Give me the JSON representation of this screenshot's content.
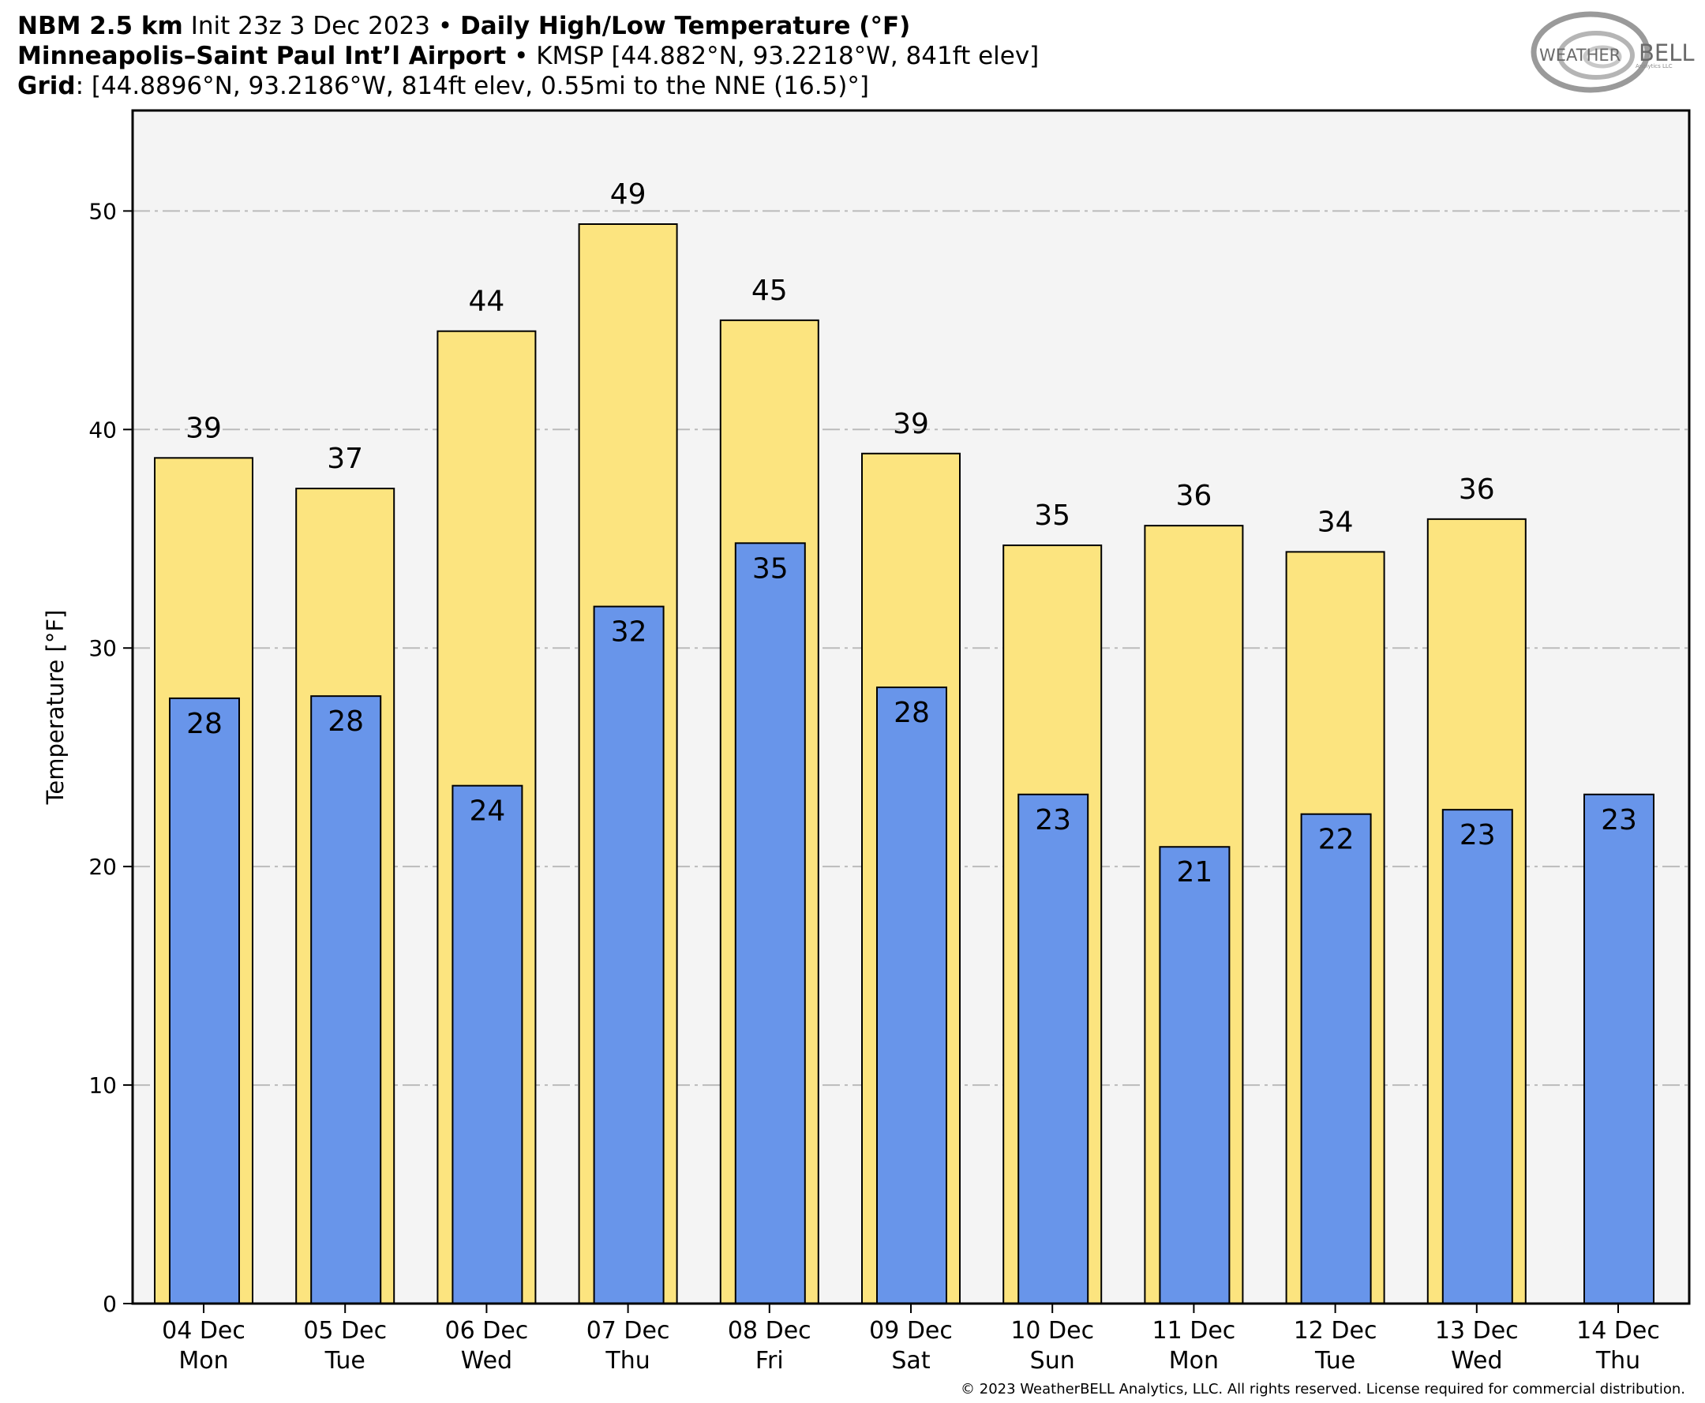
{
  "header": {
    "line1": {
      "model": "NBM 2.5 km",
      "init": " Init 23z 3 Dec 2023 • ",
      "product": "Daily High/Low Temperature (°F)"
    },
    "line2": {
      "station": "Minneapolis–Saint Paul Int’l Airport",
      "detail": " • KMSP [44.882°N, 93.2218°W, 841ft elev]"
    },
    "line3": {
      "label": "Grid",
      "detail": ": [44.8896°N, 93.2186°W, 814ft elev, 0.55mi to the NNE (16.5)°]"
    }
  },
  "logo": {
    "text_left": "WEATHER",
    "text_right": "BELL",
    "subtext": "Analytics LLC"
  },
  "footer": {
    "copyright": "© 2023 WeatherBELL Analytics, LLC. All rights reserved. License required for commercial distribution."
  },
  "colors": {
    "high_bar": "#fce47f",
    "low_bar": "#6895ea",
    "plot_bg": "#f4f4f4",
    "grid": "#bbbbbb",
    "outline": "#000000"
  },
  "chart_data": {
    "type": "bar",
    "title": "Daily High/Low Temperature (°F)",
    "ylabel": "Temperature [°F]",
    "xlabel": "",
    "ylim": [
      0,
      54.6
    ],
    "yticks": [
      0,
      10,
      20,
      30,
      40,
      50
    ],
    "grid": true,
    "categories": [
      [
        "04 Dec",
        "Mon"
      ],
      [
        "05 Dec",
        "Tue"
      ],
      [
        "06 Dec",
        "Wed"
      ],
      [
        "07 Dec",
        "Thu"
      ],
      [
        "08 Dec",
        "Fri"
      ],
      [
        "09 Dec",
        "Sat"
      ],
      [
        "10 Dec",
        "Sun"
      ],
      [
        "11 Dec",
        "Mon"
      ],
      [
        "12 Dec",
        "Tue"
      ],
      [
        "13 Dec",
        "Wed"
      ],
      [
        "14 Dec",
        "Thu"
      ]
    ],
    "series": [
      {
        "name": "High",
        "values": [
          38.7,
          37.3,
          44.5,
          49.4,
          45.0,
          38.9,
          34.7,
          35.6,
          34.4,
          35.9,
          null
        ],
        "labels": [
          "39",
          "37",
          "44",
          "49",
          "45",
          "39",
          "35",
          "36",
          "34",
          "36",
          ""
        ]
      },
      {
        "name": "Low",
        "values": [
          27.7,
          27.8,
          23.7,
          31.9,
          34.8,
          28.2,
          23.3,
          20.9,
          22.4,
          22.6,
          23.3
        ],
        "labels": [
          "28",
          "28",
          "24",
          "32",
          "35",
          "28",
          "23",
          "21",
          "22",
          "23",
          "23"
        ]
      }
    ]
  }
}
